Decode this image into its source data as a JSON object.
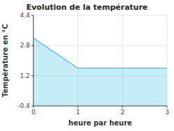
{
  "chart_data": {
    "type": "area",
    "title": "Evolution de la température",
    "xlabel": "heure par heure",
    "ylabel": "Température en °C",
    "x": [
      0,
      1,
      1,
      3
    ],
    "values": [
      3.2,
      1.6,
      1.6,
      1.6
    ],
    "color": "#5bc8e8",
    "xlim": [
      0,
      3
    ],
    "ylim": [
      -0.4,
      4.4
    ],
    "xticks": [
      0,
      1,
      2,
      3
    ],
    "yticks": [
      -0.4,
      1.2,
      2.8,
      4.4
    ],
    "grid": true
  }
}
